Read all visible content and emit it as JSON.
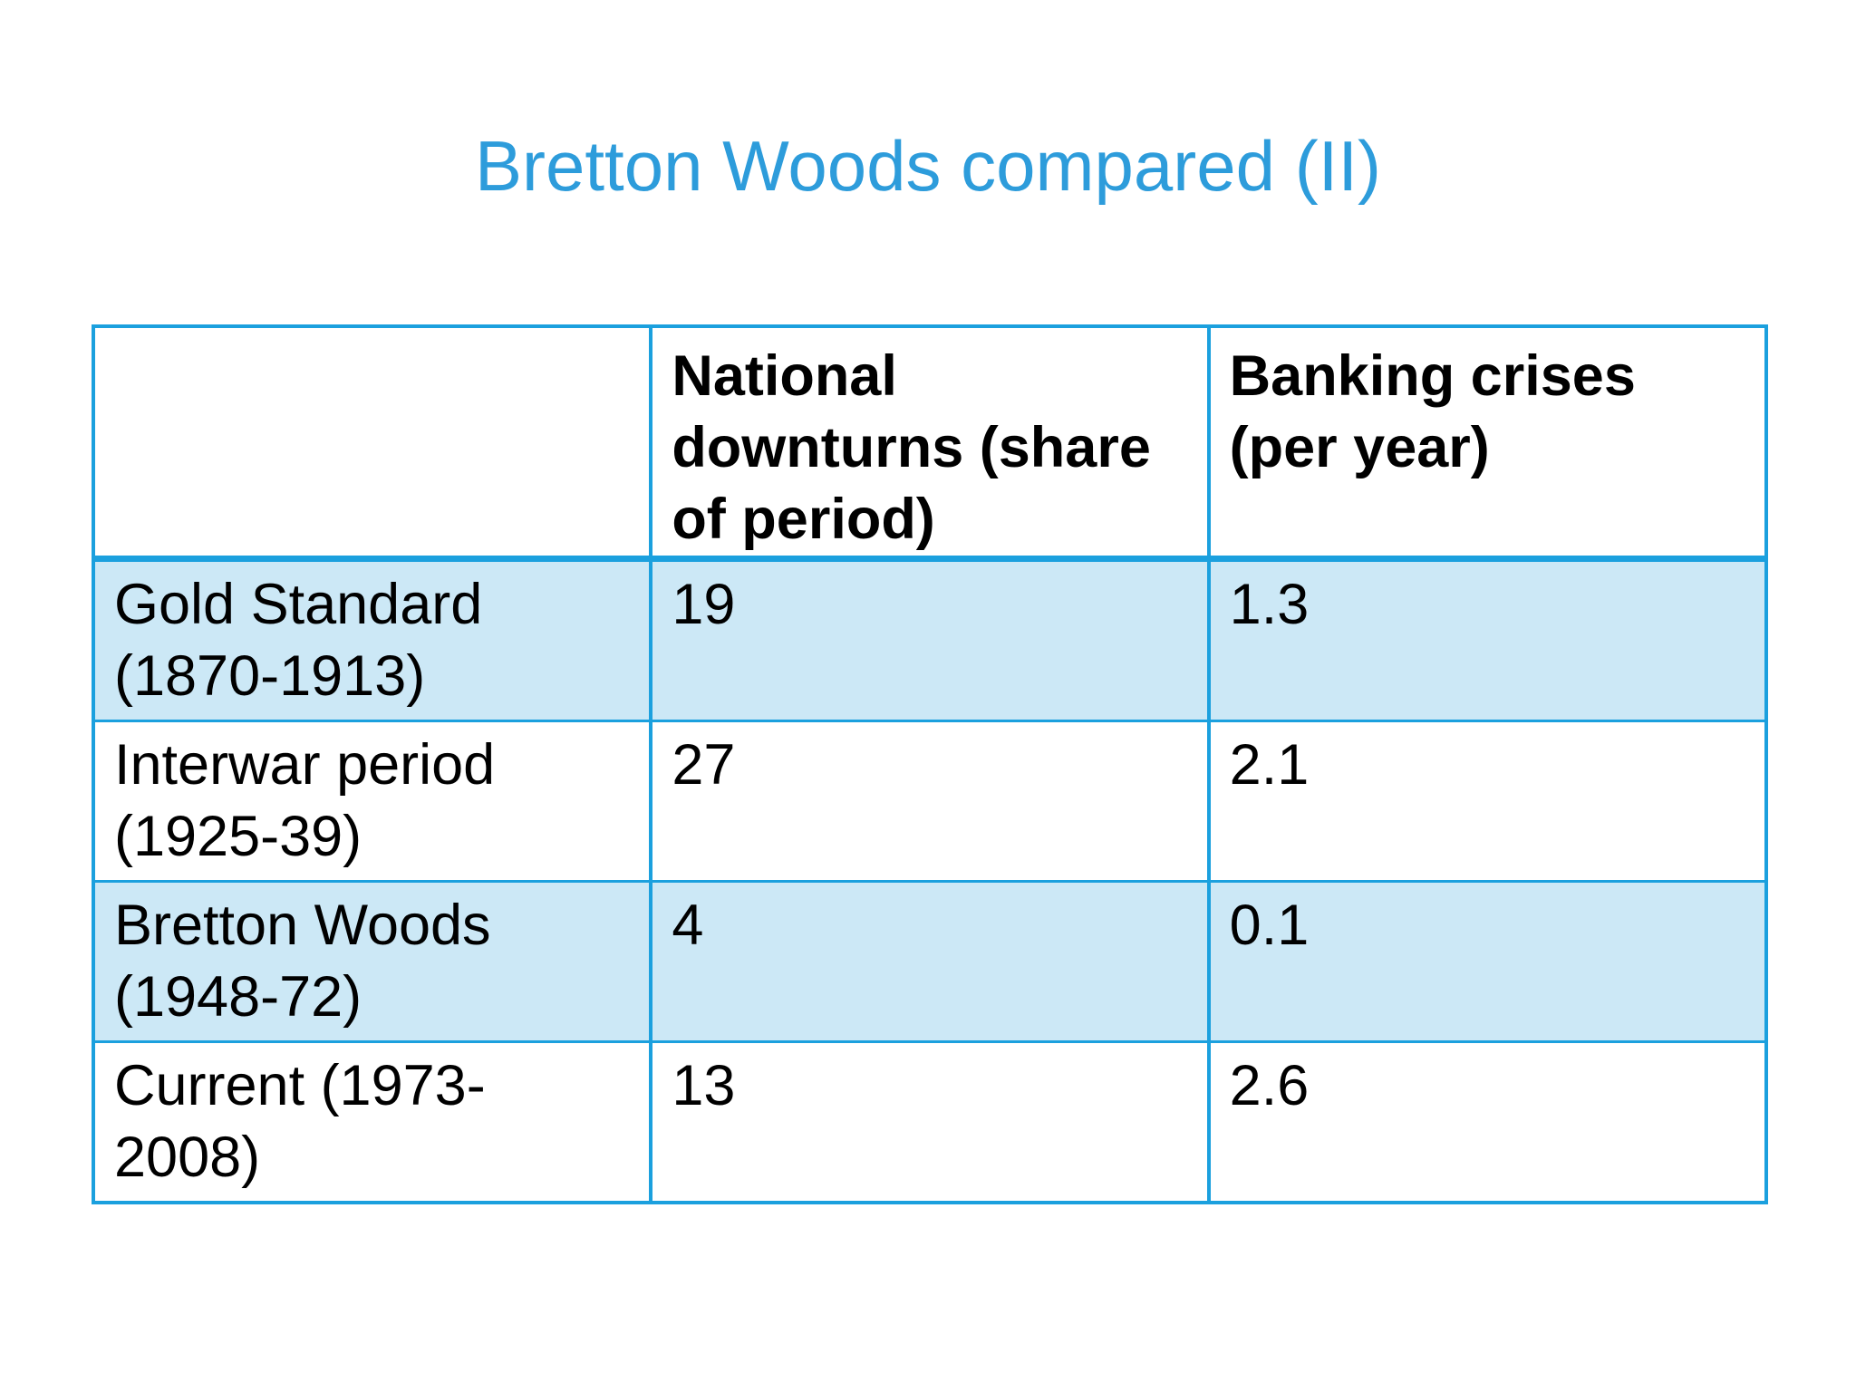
{
  "title": {
    "text": "Bretton Woods compared (II)",
    "color": "#2D9CDB"
  },
  "table": {
    "border_color": "#1BA0DE",
    "shaded_row_color": "#CCE8F6",
    "header": {
      "corner": "",
      "col1": "National\ndownturns (share\nof period)",
      "col2": "Banking crises\n(per year)"
    },
    "rows": [
      {
        "period": "Gold Standard\n(1870-1913)",
        "national_downturns": "19",
        "banking_crises": "1.3"
      },
      {
        "period": "Interwar period\n(1925-39)",
        "national_downturns": "27",
        "banking_crises": "2.1"
      },
      {
        "period": "Bretton Woods\n(1948-72)",
        "national_downturns": "4",
        "banking_crises": "0.1"
      },
      {
        "period": "Current (1973-\n2008)",
        "national_downturns": "13",
        "banking_crises": "2.6"
      }
    ]
  },
  "chart_data": {
    "type": "table",
    "title": "Bretton Woods compared (II)",
    "columns": [
      "",
      "National downturns (share of period)",
      "Banking crises (per year)"
    ],
    "rows": [
      [
        "Gold Standard (1870-1913)",
        19,
        1.3
      ],
      [
        "Interwar period (1925-39)",
        27,
        2.1
      ],
      [
        "Bretton Woods (1948-72)",
        4,
        0.1
      ],
      [
        "Current (1973-2008)",
        13,
        2.6
      ]
    ]
  }
}
